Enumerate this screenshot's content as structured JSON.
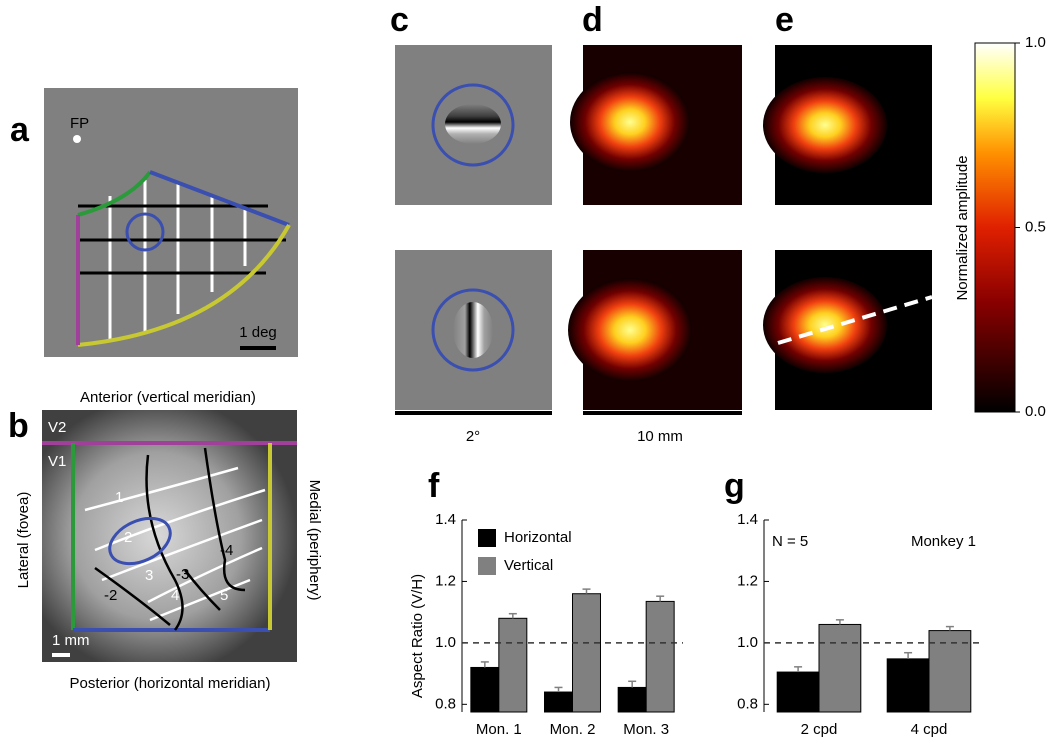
{
  "panels": {
    "labels": [
      "a",
      "b",
      "c",
      "d",
      "e",
      "f",
      "g"
    ],
    "a": {
      "fp": "FP",
      "scale": "1 deg"
    },
    "b": {
      "anterior": "Anterior (vertical meridian)",
      "posterior": "Posterior (horizontal meridian)",
      "lateral": "Lateral (fovea)",
      "medial": "Medial (periphery)",
      "v2": "V2",
      "v1": "V1",
      "scale": "1 mm",
      "contours": [
        "1",
        "2",
        "3",
        "4",
        "5",
        "-2",
        "-3",
        "-4"
      ]
    },
    "c": {
      "scale": "2°"
    },
    "d": {
      "scale": "10 mm"
    },
    "colorbar": {
      "label": "Normalized amplitude",
      "ticks": [
        {
          "value": 1,
          "label": "1.0"
        },
        0.5,
        {
          "value": 0,
          "label": "0.0"
        }
      ]
    }
  },
  "chart_data": [
    {
      "type": "bar",
      "ylabel": "Aspect Ratio (V/H)",
      "categories": [
        "Mon. 1",
        "Mon. 2",
        "Mon. 3"
      ],
      "series": [
        {
          "name": "Horizontal",
          "color": "#000000",
          "values": [
            0.92,
            0.84,
            0.855
          ],
          "errors": [
            0.018,
            0.015,
            0.02
          ]
        },
        {
          "name": "Vertical",
          "color": "#808080",
          "values": [
            1.08,
            1.16,
            1.135
          ],
          "errors": [
            0.015,
            0.015,
            0.017
          ]
        }
      ],
      "ylim": [
        0.775,
        1.4
      ],
      "yticks": [
        0.8,
        {
          "value": 1,
          "label": "1.0"
        },
        1.2,
        1.4
      ],
      "reference_line": 1,
      "legend": true
    },
    {
      "type": "bar",
      "annotations": [
        "N = 5",
        "Monkey 1"
      ],
      "categories": [
        "2 cpd",
        "4 cpd"
      ],
      "series": [
        {
          "color": "#000000",
          "values": [
            0.905,
            0.948
          ],
          "errors": [
            0.017,
            0.02
          ]
        },
        {
          "color": "#808080",
          "values": [
            1.06,
            1.04
          ],
          "errors": [
            0.015,
            0.013
          ]
        }
      ],
      "ylim": [
        0.775,
        1.4
      ],
      "yticks": [
        0.8,
        {
          "value": 1,
          "label": "1.0"
        },
        1.2,
        1.4
      ],
      "reference_line": 1,
      "legend": false
    }
  ]
}
